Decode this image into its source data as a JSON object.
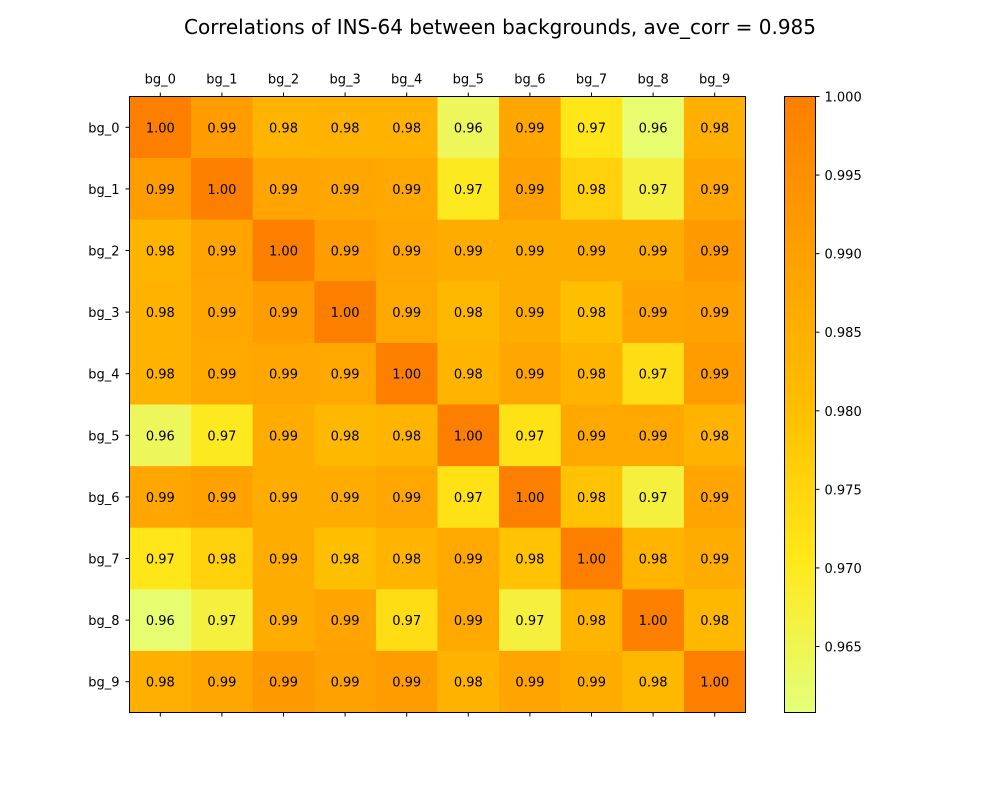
{
  "chart_data": {
    "type": "heatmap",
    "title": "Correlations of INS-64 between backgrounds, ave_corr = 0.985",
    "x_labels": [
      "bg_0",
      "bg_1",
      "bg_2",
      "bg_3",
      "bg_4",
      "bg_5",
      "bg_6",
      "bg_7",
      "bg_8",
      "bg_9"
    ],
    "y_labels": [
      "bg_0",
      "bg_1",
      "bg_2",
      "bg_3",
      "bg_4",
      "bg_5",
      "bg_6",
      "bg_7",
      "bg_8",
      "bg_9"
    ],
    "values": [
      [
        1.0,
        0.991,
        0.983,
        0.984,
        0.984,
        0.964,
        0.988,
        0.971,
        0.962,
        0.985
      ],
      [
        0.991,
        1.0,
        0.989,
        0.988,
        0.987,
        0.97,
        0.99,
        0.976,
        0.967,
        0.988
      ],
      [
        0.983,
        0.989,
        1.0,
        0.991,
        0.988,
        0.986,
        0.986,
        0.986,
        0.986,
        0.992
      ],
      [
        0.984,
        0.988,
        0.991,
        1.0,
        0.987,
        0.982,
        0.986,
        0.98,
        0.989,
        0.99
      ],
      [
        0.984,
        0.987,
        0.988,
        0.987,
        1.0,
        0.983,
        0.988,
        0.983,
        0.973,
        0.991
      ],
      [
        0.964,
        0.97,
        0.986,
        0.982,
        0.983,
        1.0,
        0.972,
        0.987,
        0.987,
        0.984
      ],
      [
        0.988,
        0.99,
        0.986,
        0.986,
        0.988,
        0.972,
        1.0,
        0.979,
        0.967,
        0.989
      ],
      [
        0.971,
        0.976,
        0.986,
        0.98,
        0.983,
        0.987,
        0.979,
        1.0,
        0.983,
        0.986
      ],
      [
        0.962,
        0.967,
        0.986,
        0.989,
        0.973,
        0.987,
        0.967,
        0.983,
        1.0,
        0.982
      ],
      [
        0.985,
        0.988,
        0.992,
        0.99,
        0.991,
        0.984,
        0.989,
        0.986,
        0.982,
        1.0
      ]
    ],
    "cell_labels": [
      [
        "1.00",
        "0.99",
        "0.98",
        "0.98",
        "0.98",
        "0.96",
        "0.99",
        "0.97",
        "0.96",
        "0.98"
      ],
      [
        "0.99",
        "1.00",
        "0.99",
        "0.99",
        "0.99",
        "0.97",
        "0.99",
        "0.98",
        "0.97",
        "0.99"
      ],
      [
        "0.98",
        "0.99",
        "1.00",
        "0.99",
        "0.99",
        "0.99",
        "0.99",
        "0.99",
        "0.99",
        "0.99"
      ],
      [
        "0.98",
        "0.99",
        "0.99",
        "1.00",
        "0.99",
        "0.98",
        "0.99",
        "0.98",
        "0.99",
        "0.99"
      ],
      [
        "0.98",
        "0.99",
        "0.99",
        "0.99",
        "1.00",
        "0.98",
        "0.99",
        "0.98",
        "0.97",
        "0.99"
      ],
      [
        "0.96",
        "0.97",
        "0.99",
        "0.98",
        "0.98",
        "1.00",
        "0.97",
        "0.99",
        "0.99",
        "0.98"
      ],
      [
        "0.99",
        "0.99",
        "0.99",
        "0.99",
        "0.99",
        "0.97",
        "1.00",
        "0.98",
        "0.97",
        "0.99"
      ],
      [
        "0.97",
        "0.98",
        "0.99",
        "0.98",
        "0.98",
        "0.99",
        "0.98",
        "1.00",
        "0.98",
        "0.99"
      ],
      [
        "0.96",
        "0.97",
        "0.99",
        "0.99",
        "0.97",
        "0.99",
        "0.97",
        "0.98",
        "1.00",
        "0.98"
      ],
      [
        "0.98",
        "0.99",
        "0.99",
        "0.99",
        "0.99",
        "0.98",
        "0.99",
        "0.99",
        "0.98",
        "1.00"
      ]
    ],
    "colorbar": {
      "vmin": 0.9608,
      "vmax": 1.0,
      "ticks": [
        0.965,
        0.97,
        0.975,
        0.98,
        0.985,
        0.99,
        0.995,
        1.0
      ],
      "tick_labels": [
        "0.965",
        "0.970",
        "0.975",
        "0.980",
        "0.985",
        "0.990",
        "0.995",
        "1.000"
      ]
    },
    "colormap": "Wistia",
    "colormap_stops": [
      "#e4ff7a",
      "#ffe81a",
      "#ffbd00",
      "#ffa000",
      "#fc7f00"
    ],
    "x_axis_position": "top",
    "grid": false
  }
}
